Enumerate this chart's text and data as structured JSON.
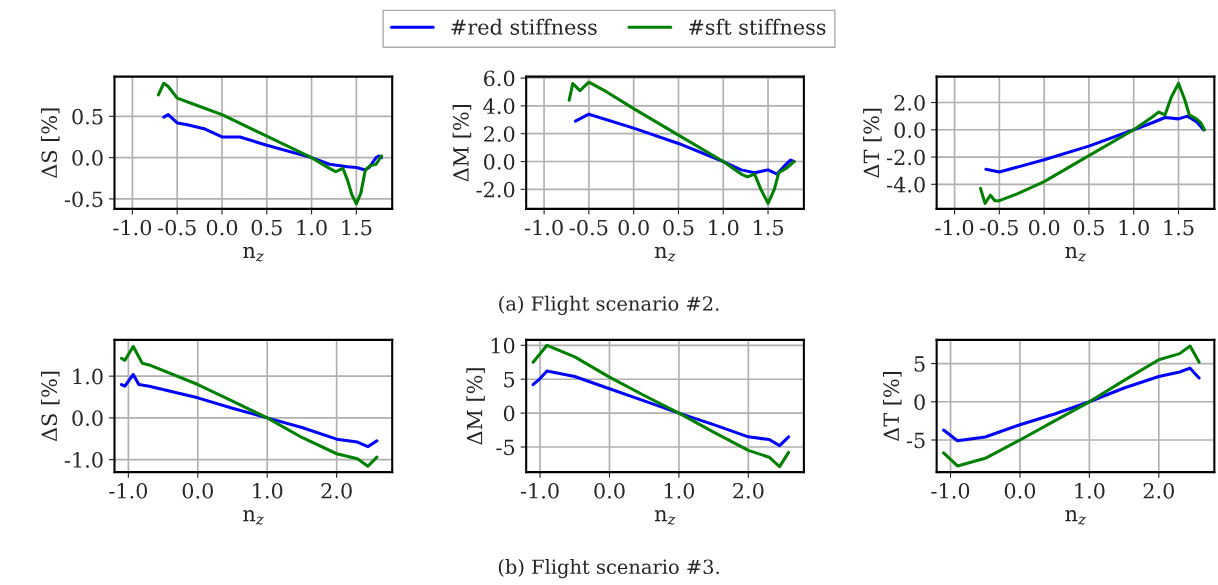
{
  "chart_data": [
    {
      "type": "line",
      "ylabel": "ΔS [%]",
      "xlabel": "n$_{z}$",
      "legend": "top",
      "grid": true,
      "xlim": [
        -1.2,
        1.9
      ],
      "ylim": [
        -0.62,
        0.98
      ],
      "xticks": [
        {
          "value": -1.0,
          "label": "-1.0"
        },
        {
          "value": -0.5,
          "label": "-0.5"
        },
        {
          "value": 0,
          "label": "0.0"
        },
        {
          "value": 0.5,
          "label": "0.5"
        },
        {
          "value": 1,
          "label": "1.0"
        },
        {
          "value": 1.5,
          "label": "1.5"
        }
      ],
      "yticks": [
        {
          "value": -0.5,
          "label": "-0.5"
        },
        {
          "value": 0,
          "label": "0.0"
        },
        {
          "value": 0.5,
          "label": "0.5"
        }
      ],
      "series": [
        {
          "name": "#red stiffness",
          "color": "#0000ff",
          "x": [
            -0.65,
            -0.6,
            -0.5,
            -0.4,
            -0.2,
            0,
            0.2,
            0.5,
            1.0,
            1.2,
            1.4,
            1.5,
            1.6,
            1.65,
            1.72,
            1.75,
            1.78
          ],
          "values": [
            0.49,
            0.52,
            0.42,
            0.4,
            0.35,
            0.25,
            0.25,
            0.15,
            0,
            -0.08,
            -0.11,
            -0.12,
            -0.15,
            -0.11,
            0,
            0.02,
            0
          ]
        },
        {
          "name": "#sft stiffness",
          "color": "#008000",
          "x": [
            -0.71,
            -0.65,
            -0.6,
            -0.5,
            -0.3,
            0,
            0.5,
            1.0,
            1.2,
            1.27,
            1.35,
            1.4,
            1.45,
            1.5,
            1.55,
            1.6,
            1.65,
            1.72,
            1.78
          ],
          "values": [
            0.76,
            0.9,
            0.86,
            0.72,
            0.64,
            0.52,
            0.26,
            0,
            -0.13,
            -0.17,
            -0.13,
            -0.27,
            -0.45,
            -0.56,
            -0.43,
            -0.15,
            -0.1,
            -0.08,
            0.02
          ]
        }
      ]
    },
    {
      "type": "line",
      "ylabel": "ΔM [%]",
      "xlabel": "n$_{z}$",
      "grid": true,
      "xlim": [
        -1.2,
        1.9
      ],
      "ylim": [
        -3.4,
        6.1
      ],
      "xticks": [
        {
          "value": -1.0,
          "label": "-1.0"
        },
        {
          "value": -0.5,
          "label": "-0.5"
        },
        {
          "value": 0,
          "label": "0.0"
        },
        {
          "value": 0.5,
          "label": "0.5"
        },
        {
          "value": 1,
          "label": "1.0"
        },
        {
          "value": 1.5,
          "label": "1.5"
        }
      ],
      "yticks": [
        {
          "value": -2,
          "label": "-2.0"
        },
        {
          "value": 0,
          "label": "0.0"
        },
        {
          "value": 2,
          "label": "2.0"
        },
        {
          "value": 4,
          "label": "4.0"
        },
        {
          "value": 6,
          "label": "6.0"
        }
      ],
      "annotations": [
        "(a) Flight scenario #2."
      ],
      "series": [
        {
          "color": "#0000ff",
          "x": [
            -0.65,
            -0.5,
            0,
            0.5,
            1.0,
            1.2,
            1.35,
            1.5,
            1.6,
            1.7,
            1.75,
            1.79
          ],
          "values": [
            2.9,
            3.4,
            2.4,
            1.3,
            0,
            -0.6,
            -0.8,
            -0.6,
            -0.9,
            -0.2,
            0.1,
            0
          ]
        },
        {
          "color": "#008000",
          "x": [
            -0.72,
            -0.68,
            -0.6,
            -0.5,
            -0.3,
            0,
            0.5,
            1.0,
            1.2,
            1.27,
            1.35,
            1.42,
            1.5,
            1.57,
            1.62,
            1.7,
            1.79
          ],
          "values": [
            4.4,
            5.6,
            5.1,
            5.7,
            5.0,
            3.8,
            1.9,
            0,
            -0.9,
            -1.1,
            -0.9,
            -2.0,
            -3.0,
            -2.0,
            -0.8,
            -0.5,
            0
          ]
        }
      ]
    },
    {
      "type": "line",
      "ylabel": "ΔT [%]",
      "xlabel": "n$_{z}$",
      "grid": true,
      "xlim": [
        -1.2,
        1.9
      ],
      "ylim": [
        -5.8,
        3.9
      ],
      "xticks": [
        {
          "value": -1.0,
          "label": "-1.0"
        },
        {
          "value": -0.5,
          "label": "-0.5"
        },
        {
          "value": 0,
          "label": "0.0"
        },
        {
          "value": 0.5,
          "label": "0.5"
        },
        {
          "value": 1,
          "label": "1.0"
        },
        {
          "value": 1.5,
          "label": "1.5"
        }
      ],
      "yticks": [
        {
          "value": -4,
          "label": "-4.0"
        },
        {
          "value": -2,
          "label": "-2.0"
        },
        {
          "value": 0,
          "label": "0.0"
        },
        {
          "value": 2,
          "label": "2.0"
        }
      ],
      "series": [
        {
          "color": "#0000ff",
          "x": [
            -0.65,
            -0.5,
            0,
            0.5,
            1.0,
            1.2,
            1.35,
            1.5,
            1.6,
            1.7,
            1.78
          ],
          "values": [
            -2.9,
            -3.1,
            -2.2,
            -1.2,
            0,
            0.5,
            0.9,
            0.8,
            1.0,
            0.6,
            0
          ]
        },
        {
          "color": "#008000",
          "x": [
            -0.71,
            -0.66,
            -0.6,
            -0.55,
            -0.5,
            -0.3,
            0,
            0.5,
            1.0,
            1.2,
            1.28,
            1.35,
            1.42,
            1.5,
            1.57,
            1.62,
            1.7,
            1.75,
            1.79
          ],
          "values": [
            -4.3,
            -5.4,
            -4.8,
            -5.2,
            -5.2,
            -4.7,
            -3.8,
            -1.9,
            0,
            0.9,
            1.3,
            1.1,
            2.4,
            3.4,
            2.2,
            1.1,
            0.8,
            0.5,
            0
          ]
        }
      ]
    },
    {
      "type": "line",
      "ylabel": "ΔS [%]",
      "xlabel": "n$_{z}$",
      "grid": true,
      "xlim": [
        -1.2,
        2.8
      ],
      "ylim": [
        -1.3,
        1.87
      ],
      "xticks": [
        {
          "value": -1.0,
          "label": "-1.0"
        },
        {
          "value": 0,
          "label": "0.0"
        },
        {
          "value": 1,
          "label": "1.0"
        },
        {
          "value": 2,
          "label": "2.0"
        }
      ],
      "yticks": [
        {
          "value": -1.0,
          "label": "-1.0"
        },
        {
          "value": 0,
          "label": "0.0"
        },
        {
          "value": 1,
          "label": "1.0"
        }
      ],
      "series": [
        {
          "color": "#0000ff",
          "x": [
            -1.1,
            -1.05,
            -0.93,
            -0.85,
            -0.7,
            0,
            0.5,
            1.0,
            1.5,
            2.0,
            2.3,
            2.45,
            2.58
          ],
          "values": [
            0.8,
            0.76,
            1.04,
            0.8,
            0.76,
            0.48,
            0.23,
            0,
            -0.23,
            -0.51,
            -0.58,
            -0.69,
            -0.55
          ]
        },
        {
          "color": "#008000",
          "x": [
            -1.1,
            -1.05,
            -0.93,
            -0.8,
            -0.7,
            0,
            0.5,
            1.0,
            1.5,
            2.0,
            2.3,
            2.45,
            2.58
          ],
          "values": [
            1.43,
            1.38,
            1.71,
            1.31,
            1.27,
            0.8,
            0.4,
            0,
            -0.47,
            -0.86,
            -0.98,
            -1.16,
            -0.94
          ]
        }
      ]
    },
    {
      "type": "line",
      "ylabel": "ΔM [%]",
      "xlabel": "n$_{z}$",
      "grid": true,
      "xlim": [
        -1.2,
        2.8
      ],
      "ylim": [
        -8.7,
        10.8
      ],
      "xticks": [
        {
          "value": -1.0,
          "label": "-1.0"
        },
        {
          "value": 0,
          "label": "0.0"
        },
        {
          "value": 1,
          "label": "1.0"
        },
        {
          "value": 2,
          "label": "2.0"
        }
      ],
      "yticks": [
        {
          "value": -5,
          "label": "-5"
        },
        {
          "value": 0,
          "label": "0"
        },
        {
          "value": 5,
          "label": "5"
        },
        {
          "value": 10,
          "label": "10"
        }
      ],
      "annotations": [
        "(b) Flight scenario #3."
      ],
      "series": [
        {
          "color": "#0000ff",
          "x": [
            -1.1,
            -1.0,
            -0.9,
            -0.5,
            0,
            0.5,
            1.0,
            1.5,
            2.0,
            2.3,
            2.45,
            2.58
          ],
          "values": [
            4.2,
            5.1,
            6.2,
            5.4,
            3.6,
            1.8,
            0,
            -1.7,
            -3.5,
            -3.9,
            -4.8,
            -3.5
          ]
        },
        {
          "color": "#008000",
          "x": [
            -1.1,
            -0.9,
            -0.5,
            0,
            0.5,
            1.0,
            1.5,
            2.0,
            2.3,
            2.45,
            2.58
          ],
          "values": [
            7.5,
            10.0,
            8.3,
            5.3,
            2.6,
            0,
            -2.8,
            -5.5,
            -6.5,
            -7.9,
            -5.8
          ]
        }
      ]
    },
    {
      "type": "line",
      "ylabel": "ΔT [%]",
      "xlabel": "n$_{z}$",
      "grid": true,
      "xlim": [
        -1.2,
        2.8
      ],
      "ylim": [
        -9.2,
        8.1
      ],
      "xticks": [
        {
          "value": -1.0,
          "label": "-1.0"
        },
        {
          "value": 0,
          "label": "0.0"
        },
        {
          "value": 1,
          "label": "1.0"
        },
        {
          "value": 2,
          "label": "2.0"
        }
      ],
      "yticks": [
        {
          "value": -5,
          "label": "-5"
        },
        {
          "value": 0,
          "label": "0"
        },
        {
          "value": 5,
          "label": "5"
        }
      ],
      "series": [
        {
          "color": "#0000ff",
          "x": [
            -1.1,
            -0.9,
            -0.5,
            0,
            0.5,
            1.0,
            1.5,
            2.0,
            2.3,
            2.45,
            2.58
          ],
          "values": [
            -3.7,
            -5.1,
            -4.6,
            -3.0,
            -1.6,
            0,
            1.8,
            3.3,
            3.9,
            4.4,
            3.1
          ]
        },
        {
          "color": "#008000",
          "x": [
            -1.1,
            -0.9,
            -0.5,
            0,
            0.5,
            1.0,
            1.5,
            2.0,
            2.3,
            2.45,
            2.58
          ],
          "values": [
            -6.7,
            -8.4,
            -7.4,
            -5.0,
            -2.5,
            0,
            2.8,
            5.5,
            6.3,
            7.3,
            5.2
          ]
        }
      ]
    }
  ]
}
